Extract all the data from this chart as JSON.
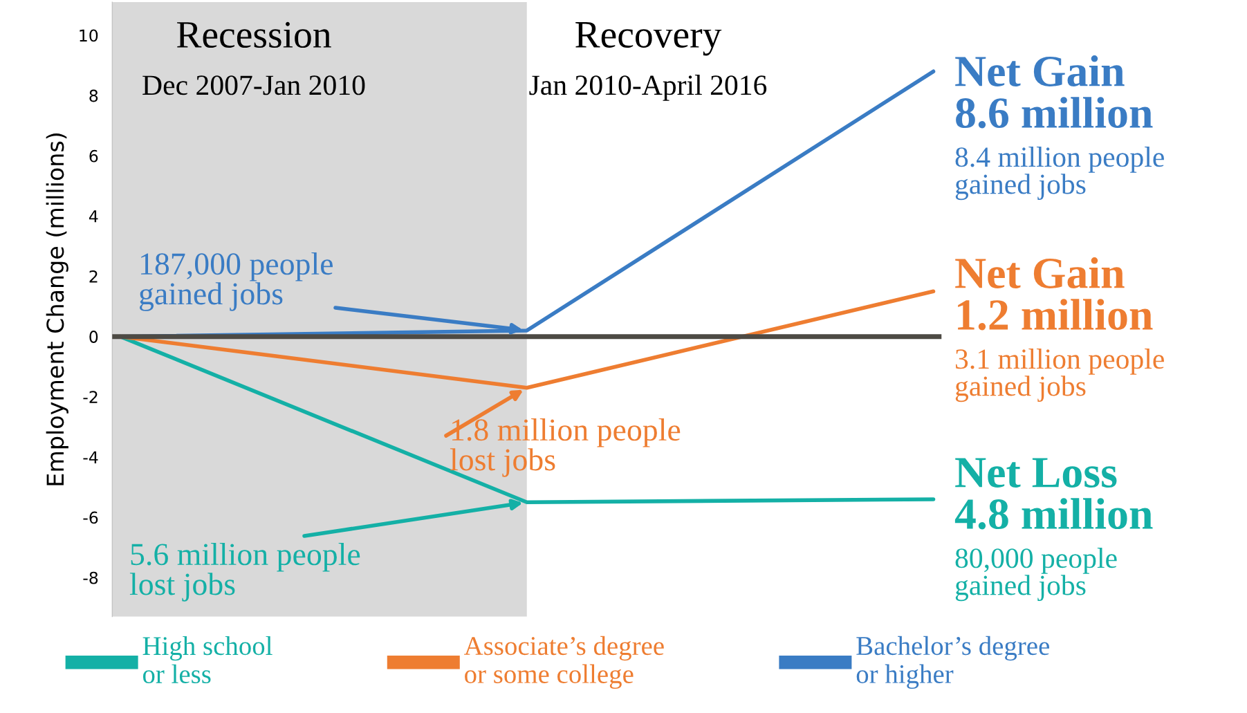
{
  "chart_data": {
    "type": "line",
    "categories": [
      null,
      null,
      null
    ],
    "series": [
      {
        "name": "High school\nor less",
        "color": "#14b0a6",
        "values": [
          0,
          -5.5,
          -5.4
        ]
      },
      {
        "name": "Associate’s degree\nor some college",
        "color": "#ee7d31",
        "values": [
          0,
          -1.7,
          1.5
        ]
      },
      {
        "name": "Bachelor’s degree\nor higher",
        "color": "#3a7cc4",
        "values": [
          0,
          0.2,
          8.8
        ]
      }
    ],
    "ylabel": "Employment Change (millions)",
    "ylim": [
      -9.3,
      11.1
    ],
    "yticks": [
      -8,
      -6,
      -4,
      -2,
      0,
      2,
      4,
      6,
      8,
      10
    ],
    "ref_lines": [
      {
        "axis": "y",
        "value": 0,
        "color": "#4d4a44"
      }
    ],
    "annotations": [
      "Recession",
      "Dec 2007-Jan 2010",
      "Recovery",
      "Jan 2010-April 2016",
      "187,000 people\ngained jobs",
      "1.8 million people\nlost jobs",
      "5.6 million people\nlost jobs",
      "Net Gain\n8.6 million",
      "8.4 million people\ngained jobs",
      "Net Gain\n1.2 million",
      "3.1 million people\ngained jobs",
      "Net Loss\n4.8 million",
      "80,000 people\ngained jobs"
    ],
    "grid": false,
    "legend": "bottom",
    "marker": "none",
    "line_style": "solid"
  }
}
